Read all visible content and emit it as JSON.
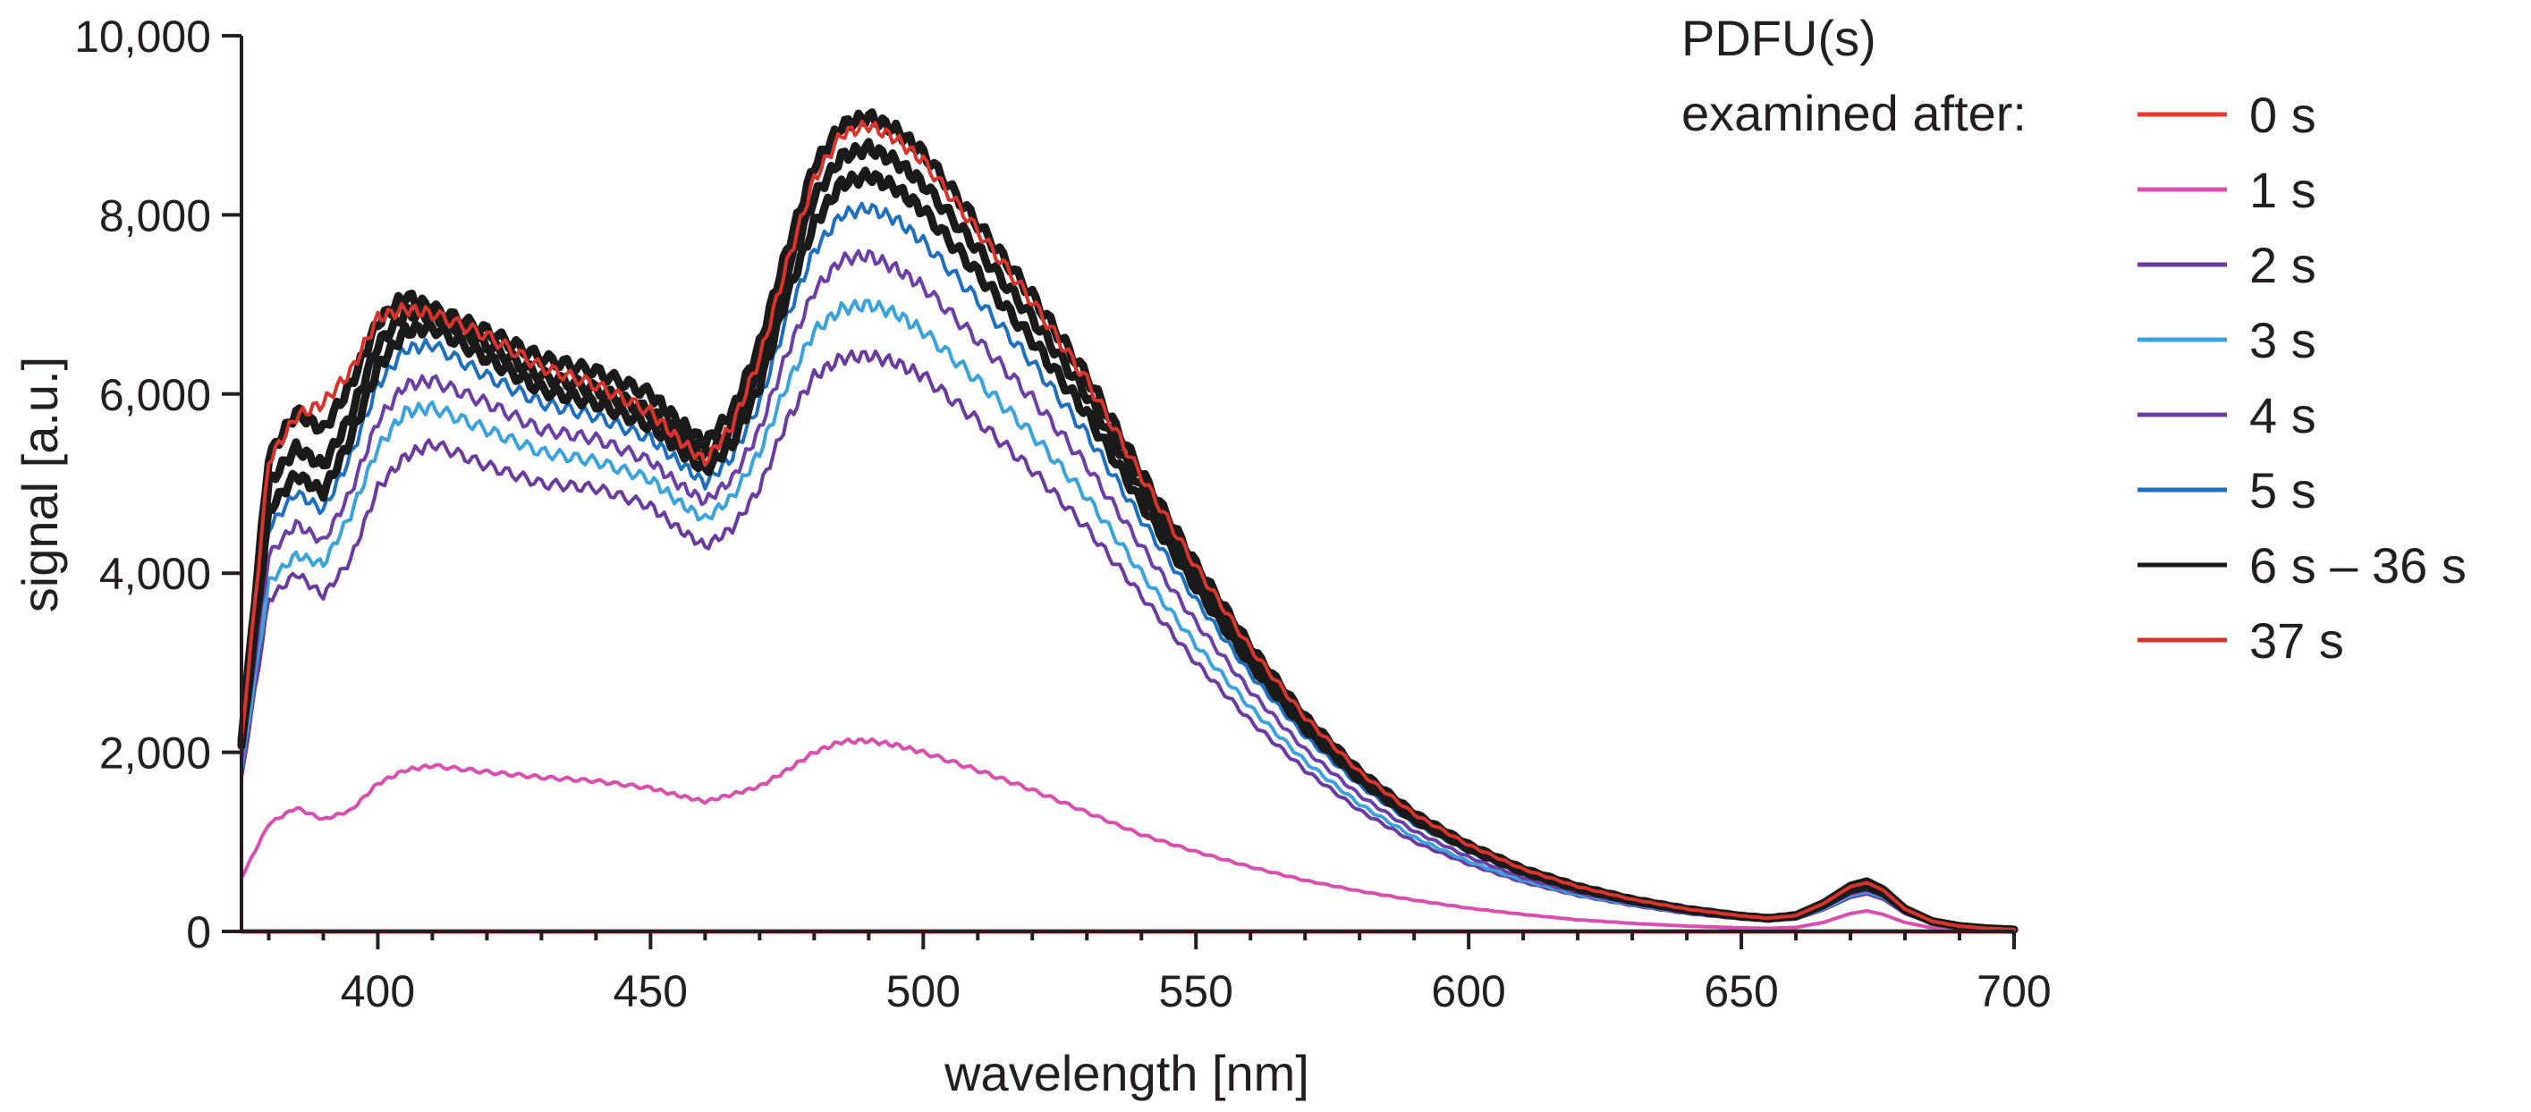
{
  "chart_data": {
    "type": "line",
    "title": "",
    "xlabel": "wavelength [nm]",
    "ylabel": "signal [a.u.]",
    "xlim": [
      375,
      700
    ],
    "ylim": [
      0,
      10000
    ],
    "xticks": [
      400,
      450,
      500,
      550,
      600,
      650,
      700
    ],
    "xtick_labels": [
      "400",
      "450",
      "500",
      "550",
      "600",
      "650",
      "700"
    ],
    "yticks": [
      0,
      2000,
      4000,
      6000,
      8000,
      10000
    ],
    "ytick_labels": [
      "0",
      "2,000",
      "4,000",
      "6,000",
      "8,000",
      "10,000"
    ],
    "legend": {
      "position": "top-right",
      "title_line1": "PDFU(s)",
      "title_line2": "examined after:",
      "entries": [
        {
          "label": "0 s",
          "color": "#e8392b"
        },
        {
          "label": "1 s",
          "color": "#d94fb0"
        },
        {
          "label": "2 s",
          "color": "#6a3a9e"
        },
        {
          "label": "3 s",
          "color": "#3ba3dc"
        },
        {
          "label": "4 s",
          "color": "#6b3fa6"
        },
        {
          "label": "5 s",
          "color": "#1f6fbf"
        },
        {
          "label": "6 s – 36 s",
          "color": "#1a1a1a"
        },
        {
          "label": "37 s",
          "color": "#d9342b"
        }
      ]
    },
    "x": [
      375,
      380,
      385,
      390,
      395,
      400,
      405,
      410,
      420,
      430,
      440,
      450,
      455,
      460,
      465,
      470,
      475,
      480,
      485,
      490,
      495,
      500,
      510,
      520,
      530,
      540,
      550,
      560,
      570,
      580,
      590,
      600,
      610,
      620,
      630,
      640,
      650,
      655,
      660,
      665,
      670,
      673,
      676,
      680,
      685,
      690,
      695,
      700
    ],
    "series": [
      {
        "name": "0 s",
        "color": "#e8392b",
        "values": [
          0,
          0,
          0,
          0,
          0,
          0,
          0,
          0,
          0,
          0,
          0,
          0,
          0,
          0,
          0,
          0,
          0,
          0,
          0,
          0,
          0,
          0,
          0,
          0,
          0,
          0,
          0,
          0,
          0,
          0,
          0,
          0,
          0,
          0,
          0,
          0,
          0,
          0,
          0,
          0,
          0,
          0,
          0,
          0,
          0,
          0,
          0,
          0
        ]
      },
      {
        "name": "1 s",
        "color": "#d94fb0",
        "values": [
          600,
          1200,
          1380,
          1250,
          1350,
          1650,
          1800,
          1850,
          1780,
          1720,
          1680,
          1600,
          1520,
          1450,
          1530,
          1620,
          1800,
          2000,
          2120,
          2130,
          2080,
          2000,
          1800,
          1580,
          1330,
          1080,
          890,
          720,
          570,
          450,
          350,
          260,
          190,
          130,
          90,
          60,
          40,
          35,
          45,
          100,
          200,
          230,
          190,
          100,
          40,
          20,
          10,
          5
        ]
      },
      {
        "name": "2 s",
        "color": "#6a3a9e",
        "values": [
          1700,
          3700,
          4000,
          3750,
          4150,
          4950,
          5300,
          5450,
          5200,
          5000,
          4950,
          4750,
          4500,
          4300,
          4500,
          4950,
          5700,
          6200,
          6400,
          6430,
          6350,
          6200,
          5700,
          5150,
          4500,
          3750,
          3000,
          2350,
          1800,
          1350,
          1000,
          750,
          550,
          400,
          290,
          200,
          140,
          120,
          140,
          240,
          380,
          420,
          360,
          200,
          90,
          45,
          25,
          15
        ]
      },
      {
        "name": "3 s",
        "color": "#3ba3dc",
        "values": [
          1800,
          3900,
          4200,
          4100,
          4650,
          5400,
          5800,
          5850,
          5600,
          5350,
          5250,
          5050,
          4800,
          4600,
          4850,
          5350,
          6100,
          6700,
          6950,
          7000,
          6900,
          6700,
          6150,
          5550,
          4850,
          4000,
          3200,
          2500,
          1900,
          1420,
          1050,
          780,
          570,
          410,
          300,
          210,
          145,
          125,
          150,
          250,
          400,
          440,
          380,
          210,
          95,
          50,
          28,
          16
        ]
      },
      {
        "name": "4 s",
        "color": "#6b3fa6",
        "values": [
          1900,
          4200,
          4550,
          4350,
          4900,
          5700,
          6100,
          6150,
          5900,
          5600,
          5500,
          5250,
          5000,
          4800,
          5050,
          5600,
          6450,
          7150,
          7500,
          7550,
          7400,
          7200,
          6600,
          5950,
          5200,
          4300,
          3450,
          2680,
          2030,
          1520,
          1120,
          830,
          600,
          430,
          310,
          215,
          150,
          130,
          155,
          265,
          420,
          460,
          395,
          220,
          100,
          52,
          30,
          17
        ]
      },
      {
        "name": "5 s",
        "color": "#1f6fbf",
        "values": [
          2000,
          4500,
          4900,
          4700,
          5300,
          6100,
          6500,
          6550,
          6200,
          5900,
          5750,
          5500,
          5250,
          5000,
          5300,
          5900,
          6850,
          7600,
          8000,
          8080,
          7950,
          7700,
          7050,
          6350,
          5550,
          4600,
          3700,
          2870,
          2180,
          1630,
          1200,
          890,
          640,
          460,
          330,
          230,
          160,
          138,
          165,
          280,
          440,
          480,
          410,
          230,
          105,
          55,
          32,
          18
        ]
      },
      {
        "name": "6 s – 36 s (early)",
        "color": "#1a1a1a",
        "values": [
          2050,
          4700,
          5100,
          4900,
          5500,
          6300,
          6700,
          6750,
          6400,
          6050,
          5900,
          5650,
          5400,
          5150,
          5450,
          6100,
          7100,
          7900,
          8350,
          8440,
          8300,
          8050,
          7350,
          6600,
          5780,
          4780,
          3840,
          2980,
          2260,
          1690,
          1240,
          920,
          660,
          475,
          340,
          238,
          165,
          142,
          170,
          290,
          460,
          500,
          425,
          238,
          108,
          57,
          33,
          19
        ]
      },
      {
        "name": "6 s – 36 s (mid)",
        "color": "#1a1a1a",
        "values": [
          2100,
          5000,
          5400,
          5200,
          5750,
          6550,
          6900,
          6900,
          6550,
          6200,
          6050,
          5800,
          5550,
          5300,
          5600,
          6300,
          7350,
          8200,
          8650,
          8750,
          8600,
          8350,
          7620,
          6850,
          5990,
          4950,
          3970,
          3080,
          2330,
          1740,
          1280,
          945,
          680,
          490,
          350,
          245,
          170,
          146,
          176,
          300,
          480,
          520,
          440,
          245,
          112,
          59,
          34,
          20
        ]
      },
      {
        "name": "6 s – 36 s (late)",
        "color": "#1a1a1a",
        "values": [
          2150,
          5300,
          5800,
          5600,
          6100,
          6800,
          7100,
          6950,
          6700,
          6400,
          6250,
          6000,
          5700,
          5450,
          5800,
          6550,
          7600,
          8550,
          9000,
          9100,
          8950,
          8700,
          7900,
          7100,
          6200,
          5120,
          4100,
          3180,
          2400,
          1790,
          1320,
          970,
          700,
          505,
          360,
          252,
          175,
          150,
          182,
          315,
          510,
          560,
          470,
          255,
          115,
          60,
          35,
          20
        ]
      },
      {
        "name": "37 s",
        "color": "#d9342b",
        "values": [
          2120,
          5250,
          5750,
          5900,
          6250,
          6850,
          6950,
          6900,
          6650,
          6300,
          6100,
          5800,
          5500,
          5250,
          5650,
          6400,
          7450,
          8400,
          8900,
          9000,
          8850,
          8600,
          7820,
          7030,
          6150,
          5080,
          4070,
          3160,
          2390,
          1780,
          1310,
          965,
          695,
          500,
          358,
          250,
          173,
          148,
          178,
          310,
          500,
          545,
          460,
          250,
          113,
          59,
          34,
          20
        ]
      }
    ]
  }
}
